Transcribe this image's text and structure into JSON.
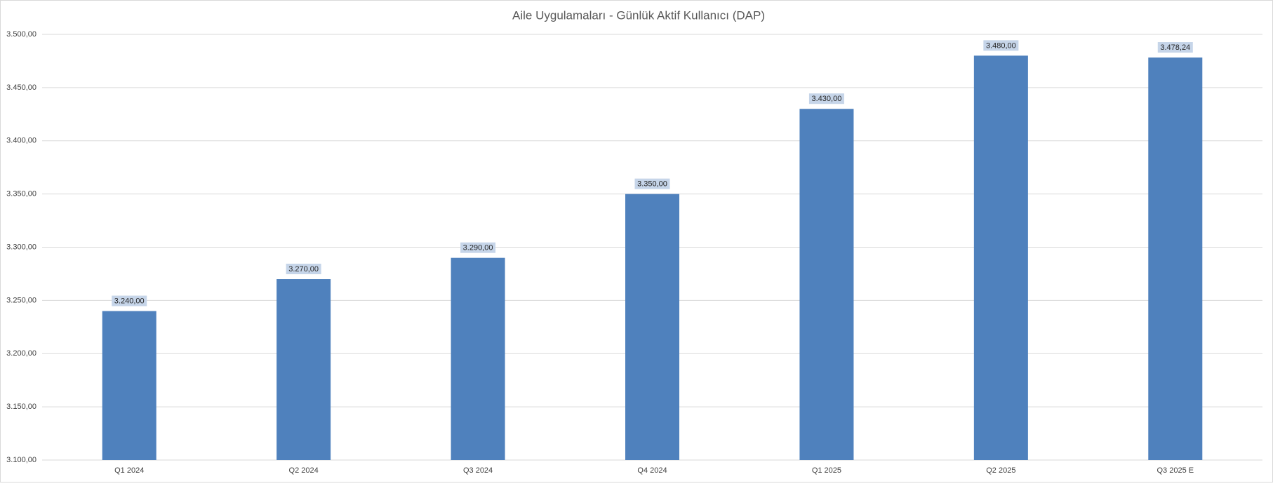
{
  "chart_data": {
    "type": "bar",
    "title": "Aile Uygulamaları - Günlük Aktif Kullanıcı (DAP)",
    "categories": [
      "Q1 2024",
      "Q2 2024",
      "Q3 2024",
      "Q4 2024",
      "Q1 2025",
      "Q2 2025",
      "Q3 2025 E"
    ],
    "values": [
      3240,
      3270,
      3290,
      3350,
      3430,
      3480,
      3478.24
    ],
    "value_labels": [
      "3.240,00",
      "3.270,00",
      "3.290,00",
      "3.350,00",
      "3.430,00",
      "3.480,00",
      "3.478,24"
    ],
    "color": "#4f81bd",
    "ylim": [
      3100,
      3500
    ],
    "yticks": [
      {
        "value": 3100,
        "label": "3.100,00"
      },
      {
        "value": 3150,
        "label": "3.150,00"
      },
      {
        "value": 3200,
        "label": "3.200,00"
      },
      {
        "value": 3250,
        "label": "3.250,00"
      },
      {
        "value": 3300,
        "label": "3.300,00"
      },
      {
        "value": 3350,
        "label": "3.350,00"
      },
      {
        "value": 3400,
        "label": "3.400,00"
      },
      {
        "value": 3450,
        "label": "3.450,00"
      },
      {
        "value": 3500,
        "label": "3.500,00"
      }
    ],
    "grid": true
  }
}
